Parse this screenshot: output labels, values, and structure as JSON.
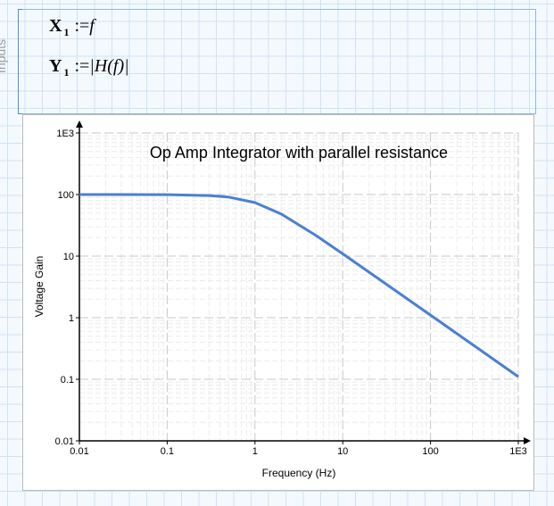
{
  "region": {
    "label": "Inputs"
  },
  "equations": [
    {
      "var": "X",
      "sub": "1",
      "op": ":=",
      "expr": "f"
    },
    {
      "var": "Y",
      "sub": "1",
      "op": ":=",
      "expr": "|H(f)|"
    }
  ],
  "chart_data": {
    "type": "line",
    "title": "Op Amp Integrator with parallel resistance",
    "xlabel": "Frequency (Hz)",
    "ylabel": "Voltage Gain",
    "xscale": "log",
    "yscale": "log",
    "xlim": [
      0.01,
      1000
    ],
    "ylim": [
      0.01,
      1000
    ],
    "xticks": [
      "0.01",
      "0.1",
      "1",
      "10",
      "100",
      "1E3"
    ],
    "yticks": [
      "0.01",
      "0.1",
      "1",
      "10",
      "100",
      "1E3"
    ],
    "grid": true,
    "color": "#4a7fd4",
    "series": [
      {
        "x": [
          0.01,
          0.1,
          0.3,
          0.5,
          1,
          2,
          5,
          10,
          100,
          1000
        ],
        "y": [
          100,
          99.6,
          96.5,
          91.0,
          74.0,
          48.2,
          21.5,
          10.9,
          1.1,
          0.11
        ]
      }
    ]
  }
}
